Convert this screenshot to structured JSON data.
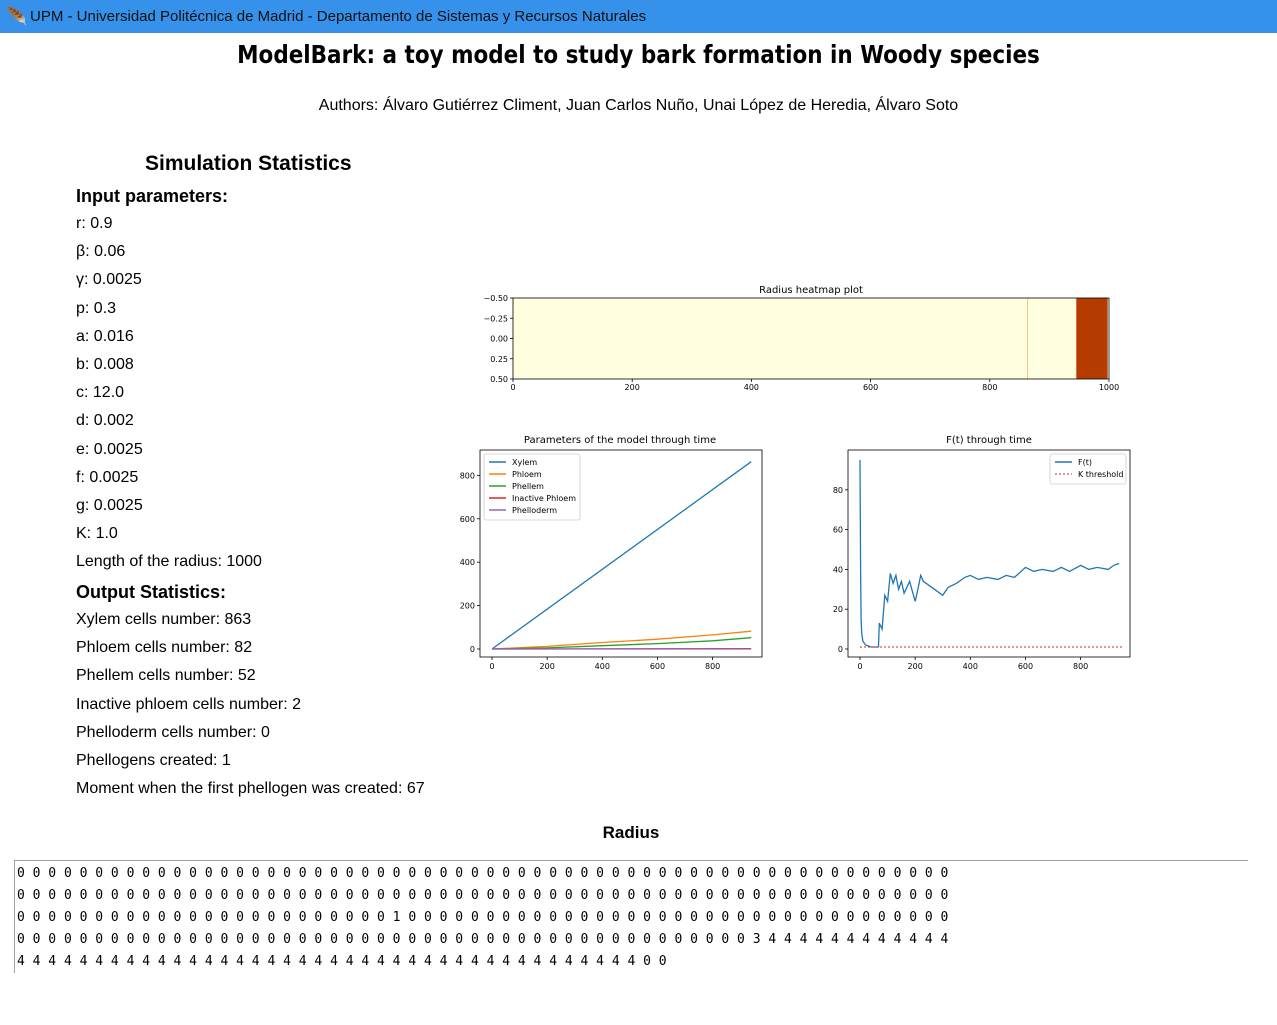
{
  "window": {
    "title": "UPM - Universidad Politécnica de Madrid - Departamento de Sistemas y Recursos Naturales",
    "icon": "feather-icon"
  },
  "header": {
    "title": "ModelBark: a toy model to study bark formation in Woody species",
    "authors": "Authors: Álvaro Gutiérrez Climent, Juan Carlos Nuño, Unai López de Heredia, Álvaro Soto"
  },
  "stats": {
    "title": "Simulation Statistics",
    "input_header": "Input parameters:",
    "inputs": [
      "r: 0.9",
      "β: 0.06",
      "γ: 0.0025",
      "p: 0.3",
      "a: 0.016",
      "b: 0.008",
      "c: 12.0",
      "d: 0.002",
      "e: 0.0025",
      "f: 0.0025",
      "g: 0.0025",
      "K: 1.0",
      "Length of the radius: 1000"
    ],
    "output_header": "Output Statistics:",
    "outputs": [
      "Xylem cells number: 863",
      "Phloem cells number: 82",
      "Phellem cells number: 52",
      "Inactive phloem cells number: 2",
      "Phelloderm cells number: 0",
      "Phellogens created: 1",
      "Moment when the first phellogen was created: 67"
    ]
  },
  "chart_data": [
    {
      "type": "heatmap",
      "title": "Radius heatmap plot",
      "xlim": [
        0,
        1000
      ],
      "ylim": [
        0.5,
        -0.5
      ],
      "x_ticks": [
        "0",
        "200",
        "400",
        "600",
        "800",
        "1000"
      ],
      "y_ticks": [
        "−0.50",
        "−0.25",
        "0.00",
        "0.25",
        "0.50"
      ],
      "segments": [
        {
          "from": 0,
          "to": 863,
          "value": 0,
          "color": "#ffffe0"
        },
        {
          "from": 863,
          "to": 864,
          "value": 1,
          "color": "#f5a05a"
        },
        {
          "from": 864,
          "to": 945,
          "value": 0,
          "color": "#ffffe0"
        },
        {
          "from": 945,
          "to": 946,
          "value": 3,
          "color": "#d2481d"
        },
        {
          "from": 946,
          "to": 998,
          "value": 4,
          "color": "#b53c00"
        },
        {
          "from": 998,
          "to": 1000,
          "value": 0,
          "color": "#ffffe0"
        }
      ]
    },
    {
      "type": "line",
      "title": "Parameters of the model through time",
      "xlim": [
        0,
        950
      ],
      "ylim": [
        0,
        880
      ],
      "x_ticks": [
        "0",
        "200",
        "400",
        "600",
        "800"
      ],
      "y_ticks": [
        "0",
        "200",
        "400",
        "600",
        "800"
      ],
      "legend": "top-left",
      "series": [
        {
          "name": "Xylem",
          "color": "#1f77b4",
          "x": [
            0,
            940
          ],
          "y": [
            0,
            863
          ]
        },
        {
          "name": "Phloem",
          "color": "#ff7f0e",
          "x": [
            0,
            200,
            400,
            600,
            800,
            940
          ],
          "y": [
            0,
            12,
            30,
            45,
            65,
            82
          ]
        },
        {
          "name": "Phellem",
          "color": "#2ca02c",
          "x": [
            0,
            200,
            400,
            600,
            800,
            940
          ],
          "y": [
            0,
            5,
            15,
            25,
            38,
            52
          ]
        },
        {
          "name": "Inactive Phloem",
          "color": "#d62728",
          "x": [
            0,
            940
          ],
          "y": [
            0,
            2
          ]
        },
        {
          "name": "Phelloderm",
          "color": "#9467bd",
          "x": [
            0,
            940
          ],
          "y": [
            0,
            0
          ]
        }
      ]
    },
    {
      "type": "line",
      "title": "F(t) through time",
      "xlim": [
        0,
        950
      ],
      "ylim": [
        0,
        96
      ],
      "x_ticks": [
        "0",
        "200",
        "400",
        "600",
        "800"
      ],
      "y_ticks": [
        "0",
        "20",
        "40",
        "60",
        "80"
      ],
      "legend": "top-right",
      "series": [
        {
          "name": "F(t)",
          "color": "#1f77b4",
          "x": [
            0,
            2,
            4,
            6,
            10,
            20,
            40,
            67,
            70,
            80,
            90,
            100,
            110,
            120,
            130,
            140,
            150,
            160,
            180,
            200,
            210,
            220,
            230,
            260,
            300,
            320,
            350,
            380,
            400,
            430,
            460,
            500,
            530,
            560,
            600,
            630,
            660,
            700,
            730,
            760,
            800,
            830,
            860,
            900,
            920,
            940
          ],
          "y": [
            95,
            40,
            15,
            8,
            4,
            2,
            1,
            1,
            13,
            10,
            27,
            24,
            38,
            33,
            37,
            30,
            34,
            28,
            34,
            24,
            30,
            37,
            34,
            31,
            27,
            31,
            33,
            36,
            37,
            35,
            36,
            35,
            37,
            36,
            41,
            39,
            40,
            39,
            41,
            39,
            42,
            40,
            41,
            40,
            42,
            43
          ]
        },
        {
          "name": "K threshold",
          "color": "#d62728",
          "style": "dotted",
          "x": [
            0,
            950
          ],
          "y": [
            1,
            1
          ]
        }
      ]
    }
  ],
  "radius": {
    "title": "Radius",
    "rows": [
      "0 0 0 0 0 0 0 0 0 0 0 0 0 0 0 0 0 0 0 0 0 0 0 0 0 0 0 0 0 0 0 0 0 0 0 0 0 0 0 0 0 0 0 0 0 0 0 0 0 0 0 0 0 0 0 0 0 0 0 0",
      "0 0 0 0 0 0 0 0 0 0 0 0 0 0 0 0 0 0 0 0 0 0 0 0 0 0 0 0 0 0 0 0 0 0 0 0 0 0 0 0 0 0 0 0 0 0 0 0 0 0 0 0 0 0 0 0 0 0 0 0",
      "0 0 0 0 0 0 0 0 0 0 0 0 0 0 0 0 0 0 0 0 0 0 0 0 1 0 0 0 0 0 0 0 0 0 0 0 0 0 0 0 0 0 0 0 0 0 0 0 0 0 0 0 0 0 0 0 0 0 0 0",
      "0 0 0 0 0 0 0 0 0 0 0 0 0 0 0 0 0 0 0 0 0 0 0 0 0 0 0 0 0 0 0 0 0 0 0 0 0 0 0 0 0 0 0 0 0 0 0 3 4 4 4 4 4 4 4 4 4 4 4 4",
      "4 4 4 4 4 4 4 4 4 4 4 4 4 4 4 4 4 4 4 4 4 4 4 4 4 4 4 4 4 4 4 4 4 4 4 4 4 4 4 4 0 0"
    ]
  }
}
